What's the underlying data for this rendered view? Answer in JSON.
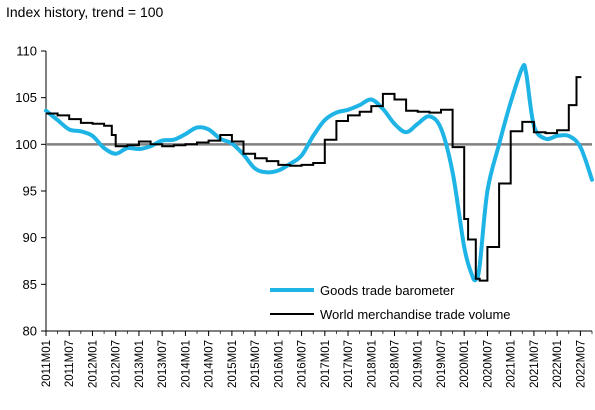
{
  "chart_data": {
    "type": "line",
    "title": "Index history, trend = 100",
    "xlabel": "",
    "ylabel": "",
    "ylim": [
      80,
      110
    ],
    "yticks": [
      80,
      85,
      90,
      95,
      100,
      105,
      110
    ],
    "xlim": [
      "2011-01",
      "2022-10"
    ],
    "xtick_labels": [
      "2011M01",
      "2011M07",
      "2012M01",
      "2012M07",
      "2013M01",
      "2013M07",
      "2014M01",
      "2014M07",
      "2015M01",
      "2015M07",
      "2016M01",
      "2016M07",
      "2017M01",
      "2017M07",
      "2018M01",
      "2018M07",
      "2019M01",
      "2019M07",
      "2020M01",
      "2020M07",
      "2021M01",
      "2021M07",
      "2022M01",
      "2022M07"
    ],
    "reference_line": 100,
    "grid": false,
    "legend_position": "bottom-right",
    "series": [
      {
        "name": "Goods trade barometer",
        "color": "#1fb4e6",
        "x": [
          "2011-01",
          "2011-04",
          "2011-07",
          "2011-10",
          "2012-01",
          "2012-04",
          "2012-07",
          "2012-10",
          "2013-01",
          "2013-04",
          "2013-07",
          "2013-10",
          "2014-01",
          "2014-04",
          "2014-07",
          "2014-10",
          "2015-01",
          "2015-04",
          "2015-07",
          "2015-10",
          "2016-01",
          "2016-04",
          "2016-07",
          "2016-10",
          "2017-01",
          "2017-04",
          "2017-07",
          "2017-10",
          "2018-01",
          "2018-04",
          "2018-07",
          "2018-10",
          "2019-01",
          "2019-04",
          "2019-07",
          "2019-10",
          "2020-01",
          "2020-03",
          "2020-04",
          "2020-05",
          "2020-07",
          "2020-10",
          "2021-01",
          "2021-04",
          "2021-05",
          "2021-07",
          "2021-10",
          "2022-01",
          "2022-04",
          "2022-07",
          "2022-10"
        ],
        "values": [
          103.6,
          102.6,
          101.6,
          101.4,
          100.9,
          99.6,
          99.0,
          99.6,
          99.5,
          99.8,
          100.4,
          100.5,
          101.1,
          101.8,
          101.6,
          100.6,
          100.1,
          98.9,
          97.4,
          97.0,
          97.2,
          97.9,
          98.8,
          100.9,
          102.6,
          103.4,
          103.7,
          104.2,
          104.8,
          103.8,
          102.2,
          101.3,
          102.2,
          103.0,
          101.7,
          97.0,
          89.0,
          86.0,
          85.5,
          87.0,
          95.0,
          100.0,
          104.5,
          108.2,
          107.6,
          102.0,
          100.6,
          100.9,
          100.9,
          99.7,
          96.2
        ]
      },
      {
        "name": "World merchandise trade volume",
        "color": "#000000",
        "x": [
          "2011-01",
          "2011-04",
          "2011-07",
          "2011-10",
          "2012-01",
          "2012-04",
          "2012-06",
          "2012-07",
          "2012-10",
          "2013-01",
          "2013-04",
          "2013-07",
          "2013-10",
          "2014-01",
          "2014-04",
          "2014-07",
          "2014-10",
          "2015-01",
          "2015-04",
          "2015-07",
          "2015-10",
          "2016-01",
          "2016-04",
          "2016-07",
          "2016-10",
          "2017-01",
          "2017-04",
          "2017-07",
          "2017-10",
          "2018-01",
          "2018-04",
          "2018-07",
          "2018-10",
          "2019-01",
          "2019-04",
          "2019-07",
          "2019-10",
          "2020-01",
          "2020-02",
          "2020-04",
          "2020-05",
          "2020-07",
          "2020-10",
          "2021-01",
          "2021-04",
          "2021-07",
          "2021-10",
          "2022-01",
          "2022-04",
          "2022-06",
          "2022-07"
        ],
        "values": [
          103.3,
          103.1,
          102.7,
          102.3,
          102.2,
          102.0,
          101.0,
          99.8,
          99.9,
          100.3,
          100.0,
          99.8,
          99.9,
          100.0,
          100.2,
          100.4,
          101.0,
          100.3,
          99.0,
          98.5,
          98.2,
          97.8,
          97.7,
          97.8,
          98.0,
          100.5,
          102.5,
          103.1,
          103.5,
          104.1,
          105.4,
          104.8,
          103.6,
          103.5,
          103.4,
          103.7,
          99.7,
          92.0,
          89.8,
          85.6,
          85.4,
          89.0,
          95.8,
          101.4,
          102.4,
          101.3,
          101.2,
          101.5,
          104.2,
          107.2,
          107.1
        ]
      }
    ]
  }
}
